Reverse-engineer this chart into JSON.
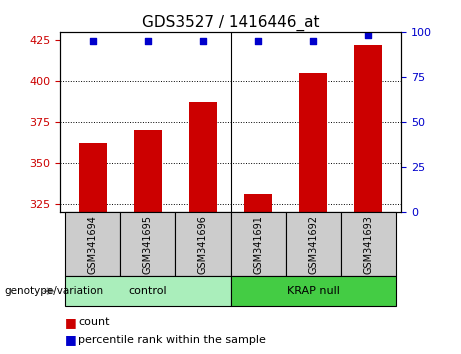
{
  "title": "GDS3527 / 1416446_at",
  "samples": [
    "GSM341694",
    "GSM341695",
    "GSM341696",
    "GSM341691",
    "GSM341692",
    "GSM341693"
  ],
  "groups": [
    "control",
    "control",
    "control",
    "KRAP null",
    "KRAP null",
    "KRAP null"
  ],
  "group_names": [
    "control",
    "KRAP null"
  ],
  "count_values": [
    362,
    370,
    387,
    331,
    405,
    422
  ],
  "percentile_values": [
    95,
    95,
    95,
    95,
    95,
    98
  ],
  "ylim_left": [
    320,
    430
  ],
  "ylim_right": [
    0,
    100
  ],
  "yticks_left": [
    325,
    350,
    375,
    400,
    425
  ],
  "yticks_right": [
    0,
    25,
    50,
    75,
    100
  ],
  "bar_color": "#cc0000",
  "dot_color": "#0000cc",
  "control_color": "#aaeebb",
  "krap_color": "#44cc44",
  "group_label": "genotype/variation",
  "legend_count": "count",
  "legend_pct": "percentile rank within the sample",
  "bar_bottom": 320,
  "title_fontsize": 11,
  "axis_label_color_left": "#cc0000",
  "axis_label_color_right": "#0000cc"
}
